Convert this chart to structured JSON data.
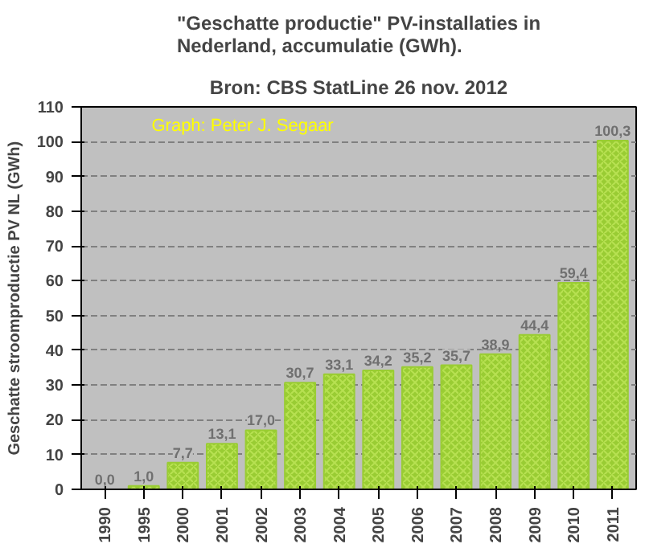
{
  "chart_data": {
    "type": "bar",
    "title": "\"Geschatte productie\" PV-installaties in Nederland, accumulatie (GWh).",
    "subtitle": "Bron: CBS StatLine 26 nov. 2012",
    "ylabel": "Geschatte stroomproductie PV NL (GWh)",
    "annotations": [
      "Graph: Peter J. Segaar"
    ],
    "categories": [
      "1990",
      "1995",
      "2000",
      "2001",
      "2002",
      "2003",
      "2004",
      "2005",
      "2006",
      "2007",
      "2008",
      "2009",
      "2010",
      "2011"
    ],
    "values": [
      0.0,
      1.0,
      7.7,
      13.1,
      17.0,
      30.7,
      33.1,
      34.2,
      35.2,
      35.7,
      38.9,
      44.4,
      59.4,
      100.3
    ],
    "value_labels": [
      "0,0",
      "1,0",
      "7,7",
      "13,1",
      "17,0",
      "30,7",
      "33,1",
      "34,2",
      "35,2",
      "35,7",
      "38,9",
      "44,4",
      "59,4",
      "100,3"
    ],
    "color": "#99cc33",
    "ylim": [
      0,
      110
    ],
    "yticks": [
      0,
      10,
      20,
      30,
      40,
      50,
      60,
      70,
      80,
      90,
      100,
      110
    ],
    "grid": "y"
  }
}
